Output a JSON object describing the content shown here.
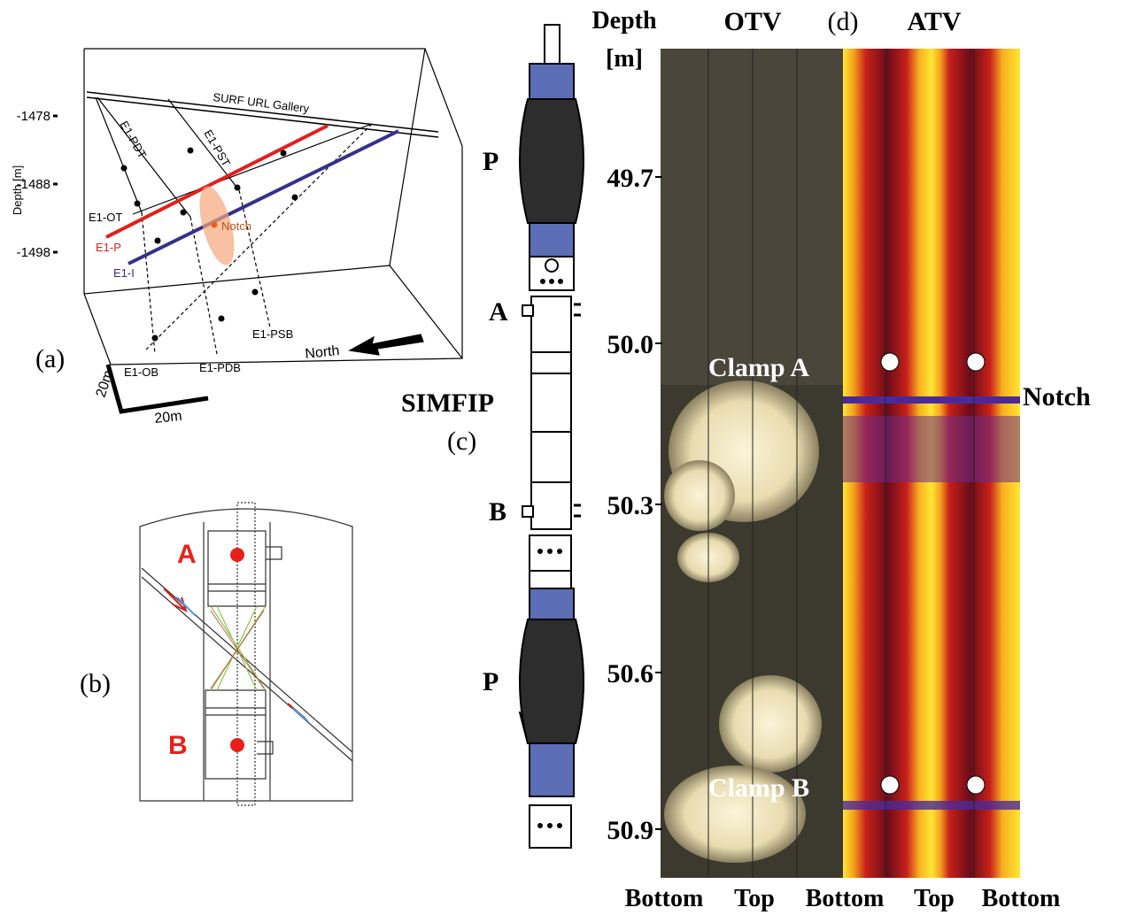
{
  "panel_a": {
    "label": "(a)",
    "gallery": "SURF URL Gallery",
    "depth_axis": "Depth [m]",
    "depth_ticks": [
      "-1478",
      "-1488",
      "-1498"
    ],
    "wells": [
      "E1-PDT",
      "E1-PST",
      "E1-OT",
      "E1-P",
      "E1-I",
      "E1-OB",
      "E1-PDB",
      "E1-PSB"
    ],
    "notch": "Notch",
    "north": "North",
    "scale": [
      "20m",
      "20m"
    ]
  },
  "panel_b": {
    "label": "(b)",
    "clamps": [
      "A",
      "B"
    ]
  },
  "panel_c": {
    "label": "(c)",
    "tool": "SIMFIP",
    "packers": [
      "P",
      "P"
    ],
    "clamps": [
      "A",
      "B"
    ]
  },
  "panel_d": {
    "label": "(d)",
    "depth_title": [
      "Depth",
      "[m]"
    ],
    "otv": "OTV",
    "atv": "ATV",
    "depth_ticks": [
      "49.7",
      "50.0",
      "50.3",
      "50.6",
      "50.9"
    ],
    "clamp_labels": [
      "Clamp A",
      "Clamp B"
    ],
    "notch": "Notch",
    "bottom_labels": [
      "Bottom",
      "Top",
      "Bottom",
      "Top",
      "Bottom"
    ]
  }
}
